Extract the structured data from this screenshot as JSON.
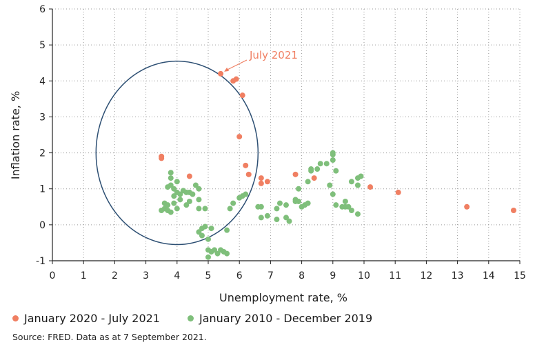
{
  "chart_data": {
    "type": "scatter",
    "xlabel": "Unemployment rate, %",
    "ylabel": "Inflation rate, %",
    "xlim": [
      0,
      15
    ],
    "ylim": [
      -1,
      6
    ],
    "xticks": [
      "0",
      "1",
      "2",
      "3",
      "4",
      "5",
      "6",
      "7",
      "8",
      "9",
      "10",
      "11",
      "12",
      "13",
      "14",
      "15"
    ],
    "yticks": [
      "-1",
      "0",
      "1",
      "2",
      "3",
      "4",
      "5",
      "6"
    ],
    "grid": "dotted",
    "colors": {
      "recent": "#f07f62",
      "older": "#7fbf7b",
      "ellipse": "#2d4f73",
      "axis": "#222222"
    },
    "series": [
      {
        "name": "January 2020 - July 2021",
        "color": "#f07f62",
        "points": [
          [
            3.5,
            1.9
          ],
          [
            3.5,
            1.85
          ],
          [
            4.4,
            1.35
          ],
          [
            5.4,
            4.2
          ],
          [
            5.8,
            4.0
          ],
          [
            5.9,
            4.05
          ],
          [
            6.1,
            3.6
          ],
          [
            6.0,
            2.45
          ],
          [
            6.2,
            1.65
          ],
          [
            6.3,
            1.4
          ],
          [
            6.7,
            1.3
          ],
          [
            6.7,
            1.15
          ],
          [
            6.9,
            1.2
          ],
          [
            7.8,
            1.4
          ],
          [
            8.4,
            1.3
          ],
          [
            10.2,
            1.05
          ],
          [
            11.1,
            0.9
          ],
          [
            13.3,
            0.5
          ],
          [
            14.8,
            0.4
          ]
        ]
      },
      {
        "name": "January 2010 - December 2019",
        "color": "#7fbf7b",
        "points": [
          [
            3.5,
            0.4
          ],
          [
            3.6,
            0.6
          ],
          [
            3.6,
            0.45
          ],
          [
            3.7,
            0.55
          ],
          [
            3.7,
            0.4
          ],
          [
            3.7,
            1.05
          ],
          [
            3.8,
            1.1
          ],
          [
            3.8,
            1.45
          ],
          [
            3.8,
            1.3
          ],
          [
            3.8,
            0.35
          ],
          [
            3.9,
            1.0
          ],
          [
            3.9,
            0.8
          ],
          [
            3.9,
            0.6
          ],
          [
            4.0,
            1.2
          ],
          [
            4.0,
            0.9
          ],
          [
            4.0,
            0.45
          ],
          [
            4.1,
            0.85
          ],
          [
            4.1,
            0.7
          ],
          [
            4.2,
            0.95
          ],
          [
            4.3,
            0.9
          ],
          [
            4.3,
            0.55
          ],
          [
            4.4,
            0.65
          ],
          [
            4.4,
            0.9
          ],
          [
            4.5,
            0.85
          ],
          [
            4.6,
            1.1
          ],
          [
            4.7,
            1.0
          ],
          [
            4.7,
            0.7
          ],
          [
            4.7,
            0.45
          ],
          [
            4.9,
            0.45
          ],
          [
            4.7,
            -0.2
          ],
          [
            4.8,
            -0.1
          ],
          [
            4.8,
            -0.3
          ],
          [
            4.9,
            -0.05
          ],
          [
            5.0,
            -0.4
          ],
          [
            5.0,
            -0.7
          ],
          [
            5.0,
            -0.9
          ],
          [
            5.1,
            -0.1
          ],
          [
            5.1,
            -0.75
          ],
          [
            5.2,
            -0.7
          ],
          [
            5.3,
            -0.8
          ],
          [
            5.4,
            -0.7
          ],
          [
            5.5,
            -0.75
          ],
          [
            5.6,
            -0.15
          ],
          [
            5.6,
            -0.8
          ],
          [
            5.7,
            0.45
          ],
          [
            5.8,
            0.6
          ],
          [
            6.0,
            0.75
          ],
          [
            6.1,
            0.8
          ],
          [
            6.2,
            0.85
          ],
          [
            6.6,
            0.5
          ],
          [
            6.7,
            0.5
          ],
          [
            6.7,
            0.2
          ],
          [
            6.9,
            0.25
          ],
          [
            7.2,
            0.45
          ],
          [
            7.2,
            0.15
          ],
          [
            7.3,
            0.6
          ],
          [
            7.5,
            0.55
          ],
          [
            7.5,
            0.2
          ],
          [
            7.6,
            0.1
          ],
          [
            7.8,
            0.7
          ],
          [
            7.8,
            0.65
          ],
          [
            7.9,
            1.0
          ],
          [
            7.9,
            0.65
          ],
          [
            8.0,
            0.5
          ],
          [
            8.1,
            0.55
          ],
          [
            8.2,
            0.6
          ],
          [
            8.2,
            1.2
          ],
          [
            8.3,
            1.55
          ],
          [
            8.3,
            1.5
          ],
          [
            8.5,
            1.55
          ],
          [
            8.6,
            1.7
          ],
          [
            8.8,
            1.7
          ],
          [
            8.9,
            1.1
          ],
          [
            9.0,
            2.0
          ],
          [
            9.0,
            1.95
          ],
          [
            9.0,
            1.8
          ],
          [
            9.0,
            0.85
          ],
          [
            9.1,
            1.5
          ],
          [
            9.1,
            0.55
          ],
          [
            9.3,
            0.5
          ],
          [
            9.4,
            0.65
          ],
          [
            9.4,
            0.5
          ],
          [
            9.5,
            0.5
          ],
          [
            9.6,
            1.2
          ],
          [
            9.6,
            0.4
          ],
          [
            9.8,
            1.3
          ],
          [
            9.8,
            1.1
          ],
          [
            9.8,
            0.3
          ],
          [
            9.9,
            1.35
          ]
        ]
      }
    ],
    "annotation": {
      "text": "July 2021",
      "x": 5.4,
      "y": 4.2
    },
    "ellipse": {
      "cx": 4.0,
      "cy": 2.0,
      "rx": 2.6,
      "ry": 2.55
    }
  },
  "legend": {
    "recent": "January 2020 - July 2021",
    "older": "January 2010 - December 2019"
  },
  "source": "Source: FRED. Data as at 7 September 2021."
}
